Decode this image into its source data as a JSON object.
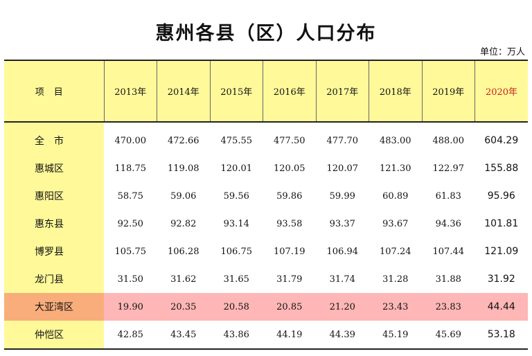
{
  "title": "惠州各县（区）人口分布",
  "unit": "单位：万人",
  "header": {
    "item": "项目",
    "years": [
      "2013年",
      "2014年",
      "2015年",
      "2016年",
      "2017年",
      "2018年",
      "2019年",
      "2020年"
    ]
  },
  "rows": [
    {
      "name": "全　市",
      "values": [
        "470.00",
        "472.66",
        "475.55",
        "477.50",
        "477.70",
        "483.00",
        "488.00",
        "604.29"
      ]
    },
    {
      "name": "惠城区",
      "values": [
        "118.75",
        "119.08",
        "120.01",
        "120.05",
        "120.07",
        "121.30",
        "122.97",
        "155.88"
      ]
    },
    {
      "name": "惠阳区",
      "values": [
        "58.75",
        "59.06",
        "59.56",
        "59.86",
        "59.99",
        "60.89",
        "61.83",
        "95.96"
      ]
    },
    {
      "name": "惠东县",
      "values": [
        "92.50",
        "92.82",
        "93.14",
        "93.58",
        "93.37",
        "93.67",
        "94.36",
        "101.81"
      ]
    },
    {
      "name": "博罗县",
      "values": [
        "105.75",
        "106.28",
        "106.75",
        "107.19",
        "106.94",
        "107.24",
        "107.44",
        "121.09"
      ]
    },
    {
      "name": "龙门县",
      "values": [
        "31.50",
        "31.62",
        "31.65",
        "31.79",
        "31.74",
        "31.28",
        "31.88",
        "31.92"
      ]
    },
    {
      "name": "大亚湾区",
      "values": [
        "19.90",
        "20.35",
        "20.58",
        "20.85",
        "21.20",
        "23.43",
        "23.83",
        "44.44"
      ]
    },
    {
      "name": "仲恺区",
      "values": [
        "42.85",
        "43.45",
        "43.86",
        "44.19",
        "44.39",
        "45.19",
        "45.69",
        "53.18"
      ]
    }
  ],
  "colors": {
    "header_bg": "#fff99a",
    "highlight_row": "#ffb6b6",
    "highlight_name": "#f9ad7b",
    "accent_2020": "#c81e1e"
  }
}
